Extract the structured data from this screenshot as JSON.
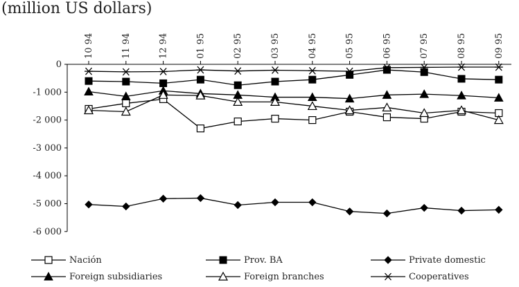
{
  "chart_data": {
    "type": "line",
    "title": "(million US dollars)",
    "categories": [
      "10 94",
      "11 94",
      "12 94",
      "01 95",
      "02 95",
      "03 95",
      "04 95",
      "05 95",
      "06 95",
      "07 95",
      "08 95",
      "09 95"
    ],
    "y_ticks": [
      "0",
      "-1 000",
      "-2 000",
      "-3 000",
      "-4 000",
      "-5 000",
      "-6 000"
    ],
    "ylim": [
      -6000,
      0
    ],
    "grid": false,
    "legend_position": "bottom",
    "series": [
      {
        "name": "Nación",
        "marker": "open-square",
        "values": [
          -1600,
          -1400,
          -1250,
          -2300,
          -2050,
          -1950,
          -2000,
          -1700,
          -1900,
          -1950,
          -1700,
          -1750
        ]
      },
      {
        "name": "Prov. BA",
        "marker": "filled-square",
        "values": [
          -600,
          -620,
          -680,
          -550,
          -750,
          -620,
          -550,
          -380,
          -200,
          -280,
          -520,
          -550
        ]
      },
      {
        "name": "Private domestic",
        "marker": "filled-diamond",
        "values": [
          -5030,
          -5100,
          -4820,
          -4800,
          -5050,
          -4950,
          -4950,
          -5280,
          -5350,
          -5150,
          -5250,
          -5220
        ]
      },
      {
        "name": "Foreign subsidiaries",
        "marker": "filled-triangle",
        "values": [
          -980,
          -1150,
          -950,
          -1050,
          -1100,
          -1180,
          -1180,
          -1230,
          -1100,
          -1070,
          -1120,
          -1200
        ]
      },
      {
        "name": "Foreign branches",
        "marker": "open-triangle",
        "values": [
          -1650,
          -1700,
          -1100,
          -1120,
          -1350,
          -1350,
          -1500,
          -1650,
          -1550,
          -1750,
          -1650,
          -2000
        ]
      },
      {
        "name": "Cooperatives",
        "marker": "star",
        "values": [
          -250,
          -270,
          -260,
          -200,
          -240,
          -210,
          -230,
          -250,
          -120,
          -110,
          -100,
          -100
        ]
      }
    ]
  }
}
